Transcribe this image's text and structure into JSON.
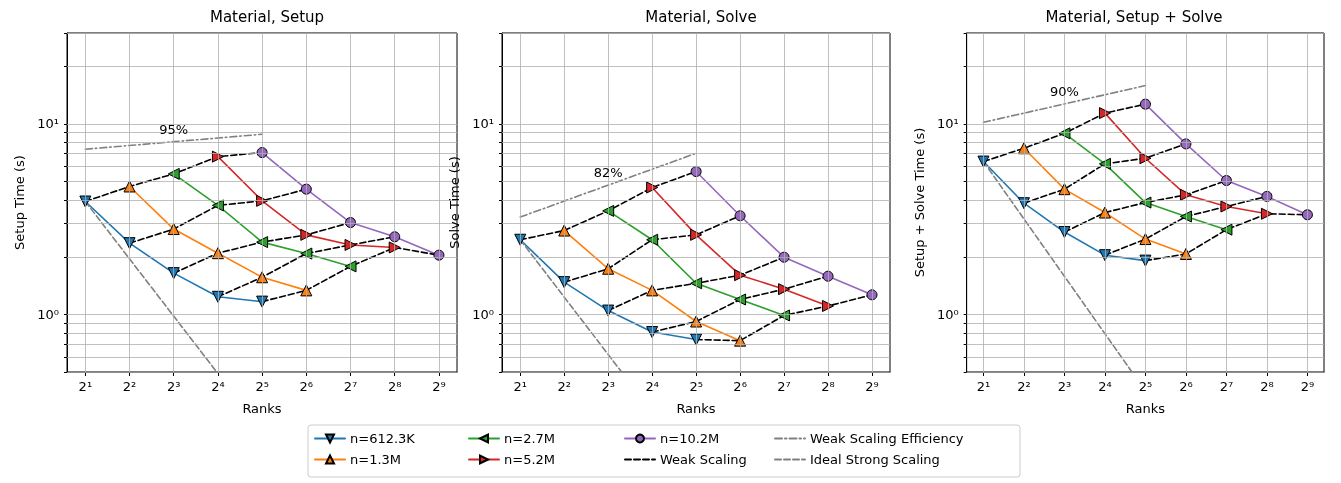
{
  "chart_data": [
    {
      "type": "line",
      "title": "Material, Setup",
      "xlabel": "Ranks",
      "ylabel": "Setup Time (s)",
      "log": "xy",
      "xlim": [
        1.5,
        680
      ],
      "xticks": [
        {
          "value": 2,
          "label": "2¹"
        },
        {
          "value": 4,
          "label": "2²"
        },
        {
          "value": 8,
          "label": "2³"
        },
        {
          "value": 16,
          "label": "2⁴"
        },
        {
          "value": 32,
          "label": "2⁵"
        },
        {
          "value": 64,
          "label": "2⁶"
        },
        {
          "value": 128,
          "label": "2⁷"
        },
        {
          "value": 256,
          "label": "2⁸"
        },
        {
          "value": 512,
          "label": "2⁹"
        }
      ],
      "ylim": [
        0.5,
        30
      ],
      "yticks": [
        {
          "value": 0.5,
          "label": null
        },
        {
          "value": 0.6,
          "label": null
        },
        {
          "value": 0.7,
          "label": null
        },
        {
          "value": 0.8,
          "label": null
        },
        {
          "value": 0.9,
          "label": null
        },
        {
          "value": 1,
          "label": "10⁰"
        },
        {
          "value": 2,
          "label": null
        },
        {
          "value": 3,
          "label": null
        },
        {
          "value": 4,
          "label": null
        },
        {
          "value": 5,
          "label": null
        },
        {
          "value": 6,
          "label": null
        },
        {
          "value": 7,
          "label": null
        },
        {
          "value": 8,
          "label": null
        },
        {
          "value": 9,
          "label": null
        },
        {
          "value": 10,
          "label": "10¹"
        },
        {
          "value": 20,
          "label": null
        },
        {
          "value": 30,
          "label": null
        }
      ],
      "grid": true,
      "annotations": [
        "95%"
      ],
      "series": [
        {
          "color": "#1f77b4",
          "marker": "triangle_down",
          "x": [
            2,
            4,
            8,
            16,
            32
          ],
          "values": [
            3.92,
            2.37,
            1.65,
            1.24,
            1.17
          ]
        },
        {
          "color": "#ff7f0e",
          "marker": "triangle",
          "x": [
            4,
            8,
            16,
            32,
            64
          ],
          "values": [
            4.7,
            2.81,
            2.1,
            1.57,
            1.34
          ]
        },
        {
          "color": "#2ca02c",
          "marker": "triangle_left",
          "x": [
            8,
            16,
            32,
            64,
            128
          ],
          "values": [
            5.47,
            3.74,
            2.4,
            2.09,
            1.79
          ]
        },
        {
          "color": "#d62728",
          "marker": "triangle_right",
          "x": [
            16,
            32,
            64,
            128,
            256
          ],
          "values": [
            6.74,
            3.95,
            2.62,
            2.32,
            2.25
          ]
        },
        {
          "color": "#9467bd",
          "marker": "circle",
          "x": [
            32,
            64,
            128,
            256,
            512
          ],
          "values": [
            7.08,
            4.55,
            3.04,
            2.56,
            2.05
          ]
        },
        {
          "color": "#000000",
          "line_style": "dashed",
          "marker": "none",
          "x": [
            2,
            4,
            8,
            16,
            32
          ],
          "values": [
            3.92,
            4.7,
            5.47,
            6.74,
            7.08
          ]
        },
        {
          "color": "#000000",
          "line_style": "dashed",
          "marker": "none",
          "x": [
            4,
            8,
            16,
            32,
            64
          ],
          "values": [
            2.37,
            2.81,
            3.74,
            3.95,
            4.55
          ]
        },
        {
          "color": "#000000",
          "line_style": "dashed",
          "marker": "none",
          "x": [
            8,
            16,
            32,
            64,
            128
          ],
          "values": [
            1.65,
            2.1,
            2.4,
            2.62,
            3.04
          ]
        },
        {
          "color": "#000000",
          "line_style": "dashed",
          "marker": "none",
          "x": [
            16,
            32,
            64,
            128,
            256
          ],
          "values": [
            1.24,
            1.57,
            2.09,
            2.32,
            2.56
          ]
        },
        {
          "color": "#000000",
          "line_style": "dashed",
          "marker": "none",
          "x": [
            32,
            64,
            128,
            256,
            512
          ],
          "values": [
            1.17,
            1.34,
            1.79,
            2.25,
            2.05
          ]
        },
        {
          "color": "#808080",
          "line_style": "dashdot",
          "marker": "none",
          "x": [
            2,
            32
          ],
          "values": [
            7.37,
            8.83
          ]
        },
        {
          "color": "#808080",
          "line_style": "dashed",
          "marker": "none",
          "x": [
            2,
            15.7
          ],
          "values": [
            3.92,
            0.5
          ]
        }
      ]
    },
    {
      "type": "line",
      "title": "Material, Solve",
      "xlabel": "Ranks",
      "ylabel": "Solve Time (s)",
      "log": "xy",
      "legend": "bottom",
      "xlim": [
        1.5,
        680
      ],
      "xticks": [
        {
          "value": 2,
          "label": "2¹"
        },
        {
          "value": 4,
          "label": "2²"
        },
        {
          "value": 8,
          "label": "2³"
        },
        {
          "value": 16,
          "label": "2⁴"
        },
        {
          "value": 32,
          "label": "2⁵"
        },
        {
          "value": 64,
          "label": "2⁶"
        },
        {
          "value": 128,
          "label": "2⁷"
        },
        {
          "value": 256,
          "label": "2⁸"
        },
        {
          "value": 512,
          "label": "2⁹"
        }
      ],
      "ylim": [
        0.5,
        30
      ],
      "yticks": [
        {
          "value": 0.5,
          "label": null
        },
        {
          "value": 0.6,
          "label": null
        },
        {
          "value": 0.7,
          "label": null
        },
        {
          "value": 0.8,
          "label": null
        },
        {
          "value": 0.9,
          "label": null
        },
        {
          "value": 1,
          "label": "10⁰"
        },
        {
          "value": 2,
          "label": null
        },
        {
          "value": 3,
          "label": null
        },
        {
          "value": 4,
          "label": null
        },
        {
          "value": 5,
          "label": null
        },
        {
          "value": 6,
          "label": null
        },
        {
          "value": 7,
          "label": null
        },
        {
          "value": 8,
          "label": null
        },
        {
          "value": 9,
          "label": null
        },
        {
          "value": 10,
          "label": "10¹"
        },
        {
          "value": 20,
          "label": null
        },
        {
          "value": 30,
          "label": null
        }
      ],
      "grid": true,
      "annotations": [
        "82%"
      ],
      "series": [
        {
          "name": "n=612.3K",
          "color": "#1f77b4",
          "marker": "triangle_down",
          "x": [
            2,
            4,
            8,
            16,
            32
          ],
          "values": [
            2.47,
            1.48,
            1.05,
            0.81,
            0.74
          ]
        },
        {
          "name": "n=1.3M",
          "color": "#ff7f0e",
          "marker": "triangle",
          "x": [
            4,
            8,
            16,
            32,
            64
          ],
          "values": [
            2.76,
            1.74,
            1.34,
            0.92,
            0.73
          ]
        },
        {
          "name": "n=2.7M",
          "color": "#2ca02c",
          "marker": "triangle_left",
          "x": [
            8,
            16,
            32,
            64,
            128
          ],
          "values": [
            3.5,
            2.47,
            1.46,
            1.2,
            0.99
          ]
        },
        {
          "name": "n=5.2M",
          "color": "#d62728",
          "marker": "triangle_right",
          "x": [
            16,
            32,
            64,
            128,
            256
          ],
          "values": [
            4.64,
            2.62,
            1.61,
            1.36,
            1.11
          ]
        },
        {
          "name": "n=10.2M",
          "color": "#9467bd",
          "marker": "circle",
          "x": [
            32,
            64,
            128,
            256,
            512
          ],
          "values": [
            5.63,
            3.3,
            2.0,
            1.59,
            1.27
          ]
        },
        {
          "name": "Weak Scaling",
          "color": "#000000",
          "line_style": "dashed",
          "marker": "none",
          "x": [
            2,
            4,
            8,
            16,
            32
          ],
          "values": [
            2.47,
            2.76,
            3.5,
            4.64,
            5.63
          ]
        },
        {
          "color": "#000000",
          "line_style": "dashed",
          "marker": "none",
          "x": [
            4,
            8,
            16,
            32,
            64
          ],
          "values": [
            1.48,
            1.74,
            2.47,
            2.62,
            3.3
          ]
        },
        {
          "color": "#000000",
          "line_style": "dashed",
          "marker": "none",
          "x": [
            8,
            16,
            32,
            64,
            128
          ],
          "values": [
            1.05,
            1.34,
            1.46,
            1.61,
            2.0
          ]
        },
        {
          "color": "#000000",
          "line_style": "dashed",
          "marker": "none",
          "x": [
            16,
            32,
            64,
            128,
            256
          ],
          "values": [
            0.81,
            0.92,
            1.2,
            1.36,
            1.59
          ]
        },
        {
          "color": "#000000",
          "line_style": "dashed",
          "marker": "none",
          "x": [
            32,
            64,
            128,
            256,
            512
          ],
          "values": [
            0.74,
            0.73,
            0.99,
            1.11,
            1.27
          ]
        },
        {
          "name": "Weak Scaling Efficiency",
          "color": "#808080",
          "line_style": "dashdot",
          "marker": "none",
          "x": [
            2,
            32
          ],
          "values": [
            3.25,
            7.02
          ]
        },
        {
          "name": "Ideal Strong Scaling",
          "color": "#808080",
          "line_style": "dashed",
          "marker": "none",
          "x": [
            2,
            9.88
          ],
          "values": [
            2.47,
            0.5
          ]
        }
      ]
    },
    {
      "type": "line",
      "title": "Material, Setup + Solve",
      "xlabel": "Ranks",
      "ylabel": "Setup + Solve Time (s)",
      "log": "xy",
      "xlim": [
        1.5,
        680
      ],
      "xticks": [
        {
          "value": 2,
          "label": "2¹"
        },
        {
          "value": 4,
          "label": "2²"
        },
        {
          "value": 8,
          "label": "2³"
        },
        {
          "value": 16,
          "label": "2⁴"
        },
        {
          "value": 32,
          "label": "2⁵"
        },
        {
          "value": 64,
          "label": "2⁶"
        },
        {
          "value": 128,
          "label": "2⁷"
        },
        {
          "value": 256,
          "label": "2⁸"
        },
        {
          "value": 512,
          "label": "2⁹"
        }
      ],
      "ylim": [
        0.5,
        30
      ],
      "yticks": [
        {
          "value": 0.5,
          "label": null
        },
        {
          "value": 0.6,
          "label": null
        },
        {
          "value": 0.7,
          "label": null
        },
        {
          "value": 0.8,
          "label": null
        },
        {
          "value": 0.9,
          "label": null
        },
        {
          "value": 1,
          "label": "10⁰"
        },
        {
          "value": 2,
          "label": null
        },
        {
          "value": 3,
          "label": null
        },
        {
          "value": 4,
          "label": null
        },
        {
          "value": 5,
          "label": null
        },
        {
          "value": 6,
          "label": null
        },
        {
          "value": 7,
          "label": null
        },
        {
          "value": 8,
          "label": null
        },
        {
          "value": 9,
          "label": null
        },
        {
          "value": 10,
          "label": "10¹"
        },
        {
          "value": 20,
          "label": null
        },
        {
          "value": 30,
          "label": null
        }
      ],
      "grid": true,
      "annotations": [
        "90%"
      ],
      "series": [
        {
          "color": "#1f77b4",
          "marker": "triangle_down",
          "x": [
            2,
            4,
            8,
            16,
            32
          ],
          "values": [
            6.35,
            3.84,
            2.71,
            2.05,
            1.92
          ]
        },
        {
          "color": "#ff7f0e",
          "marker": "triangle",
          "x": [
            4,
            8,
            16,
            32,
            64
          ],
          "values": [
            7.46,
            4.55,
            3.43,
            2.49,
            2.08
          ]
        },
        {
          "color": "#2ca02c",
          "marker": "triangle_left",
          "x": [
            8,
            16,
            32,
            64,
            128
          ],
          "values": [
            8.93,
            6.18,
            3.87,
            3.27,
            2.79
          ]
        },
        {
          "color": "#d62728",
          "marker": "triangle_right",
          "x": [
            16,
            32,
            64,
            128,
            256
          ],
          "values": [
            11.4,
            6.61,
            4.25,
            3.69,
            3.38
          ]
        },
        {
          "color": "#9467bd",
          "marker": "circle",
          "x": [
            32,
            64,
            128,
            256,
            512
          ],
          "values": [
            12.7,
            7.86,
            5.05,
            4.17,
            3.34
          ]
        },
        {
          "color": "#000000",
          "line_style": "dashed",
          "marker": "none",
          "x": [
            2,
            4,
            8,
            16,
            32
          ],
          "values": [
            6.35,
            7.46,
            8.93,
            11.4,
            12.7
          ]
        },
        {
          "color": "#000000",
          "line_style": "dashed",
          "marker": "none",
          "x": [
            4,
            8,
            16,
            32,
            64
          ],
          "values": [
            3.84,
            4.55,
            6.18,
            6.61,
            7.86
          ]
        },
        {
          "color": "#000000",
          "line_style": "dashed",
          "marker": "none",
          "x": [
            8,
            16,
            32,
            64,
            128
          ],
          "values": [
            2.71,
            3.43,
            3.87,
            4.25,
            5.05
          ]
        },
        {
          "color": "#000000",
          "line_style": "dashed",
          "marker": "none",
          "x": [
            16,
            32,
            64,
            128,
            256
          ],
          "values": [
            2.05,
            2.49,
            3.27,
            3.69,
            4.17
          ]
        },
        {
          "color": "#000000",
          "line_style": "dashed",
          "marker": "none",
          "x": [
            32,
            64,
            128,
            256,
            512
          ],
          "values": [
            1.92,
            2.08,
            2.79,
            3.38,
            3.34
          ]
        },
        {
          "color": "#808080",
          "line_style": "dashdot",
          "marker": "none",
          "x": [
            2,
            32
          ],
          "values": [
            10.2,
            15.9
          ]
        },
        {
          "color": "#808080",
          "line_style": "dashed",
          "marker": "none",
          "x": [
            2,
            25.4
          ],
          "values": [
            6.35,
            0.5
          ]
        }
      ]
    }
  ]
}
